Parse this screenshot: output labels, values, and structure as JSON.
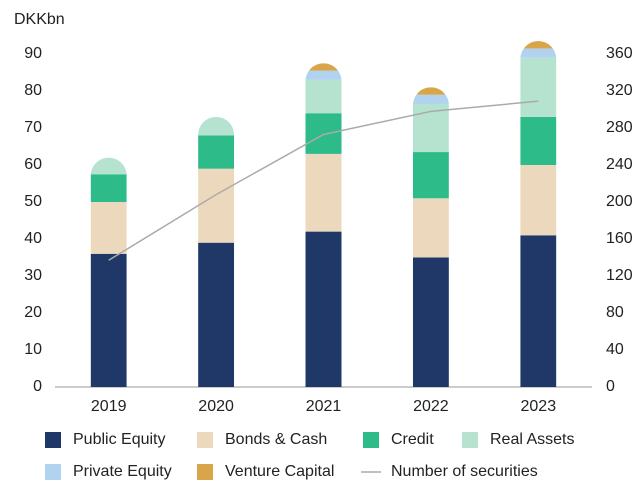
{
  "chart_data": {
    "type": "bar",
    "stacked": true,
    "ylabel": "DKKbn",
    "categories": [
      "2019",
      "2020",
      "2021",
      "2022",
      "2023"
    ],
    "series": [
      {
        "name": "Public Equity",
        "color": "#1f3868",
        "values": [
          36,
          39,
          42,
          35,
          41
        ]
      },
      {
        "name": "Bonds & Cash",
        "color": "#ecd9bd",
        "values": [
          14,
          20,
          21,
          16,
          19
        ]
      },
      {
        "name": "Credit",
        "color": "#2ebb8a",
        "values": [
          7.5,
          9,
          11,
          12.5,
          13
        ]
      },
      {
        "name": "Real Assets",
        "color": "#b5e3cf",
        "values": [
          4.5,
          5,
          9,
          13,
          16
        ]
      },
      {
        "name": "Private Equity",
        "color": "#b1d3ef",
        "values": [
          0,
          0,
          2.5,
          2.5,
          2.5
        ]
      },
      {
        "name": "Venture Capital",
        "color": "#d8a54a",
        "values": [
          0,
          0,
          2,
          2,
          2
        ]
      },
      {
        "name": "Number of securities",
        "color": "#aaaaaa",
        "type": "line",
        "axis": "y2",
        "values": [
          137,
          208,
          273,
          298,
          309
        ]
      }
    ],
    "ylim": [
      0,
      90
    ],
    "yticks": [
      0,
      10,
      20,
      30,
      40,
      50,
      60,
      70,
      80,
      90
    ],
    "y2lim": [
      0,
      360
    ],
    "y2ticks": [
      0,
      40,
      80,
      120,
      160,
      200,
      240,
      280,
      320,
      360
    ],
    "grid": false
  }
}
